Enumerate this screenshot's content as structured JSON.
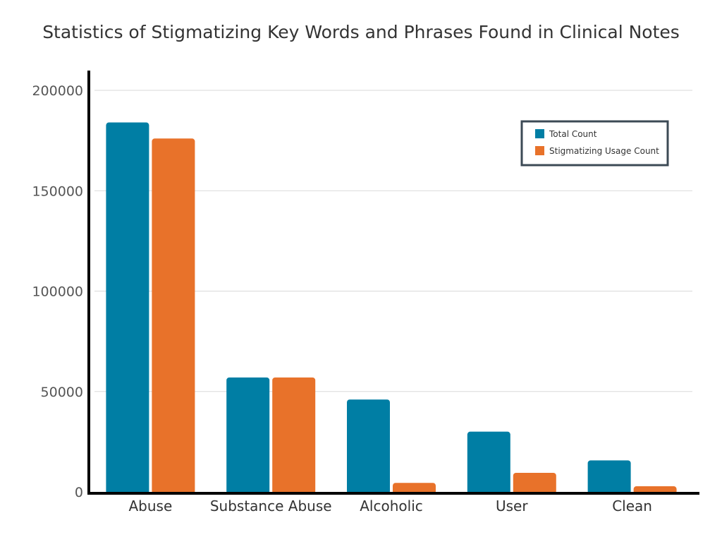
{
  "chart_data": {
    "type": "bar",
    "title": "Statistics of Stigmatizing Key Words and Phrases Found in Clinical Notes",
    "xlabel": "",
    "ylabel": "",
    "categories": [
      "Abuse",
      "Substance Abuse",
      "Alcoholic",
      "User",
      "Clean"
    ],
    "series": [
      {
        "name": "Total Count",
        "values": [
          184000,
          57000,
          46000,
          30000,
          15700
        ],
        "color": "#007EA4"
      },
      {
        "name": "Stigmatizing Usage Count",
        "values": [
          176000,
          57000,
          4500,
          9500,
          2800
        ],
        "color": "#E8722A"
      }
    ],
    "ylim": [
      0,
      200000
    ],
    "yticks": [
      "0",
      "50000",
      "100000",
      "150000",
      "200000"
    ],
    "grid": true,
    "legend_position": "top-right"
  }
}
